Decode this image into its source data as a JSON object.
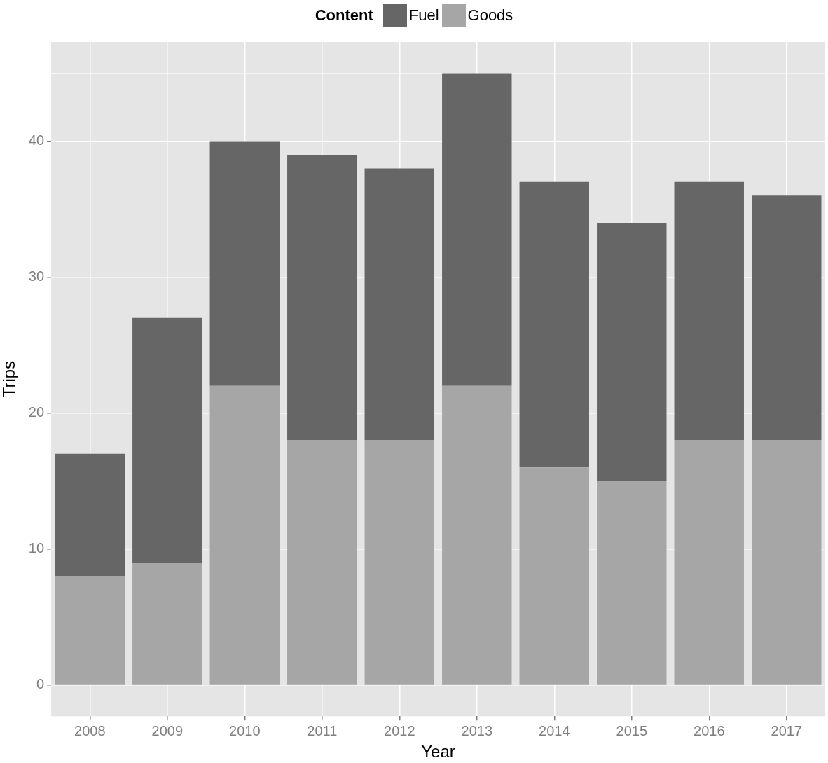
{
  "chart_data": {
    "type": "bar",
    "stacked": true,
    "xlabel": "Year",
    "ylabel": "Trips",
    "legend_title": "Content",
    "legend": "top",
    "categories": [
      "2008",
      "2009",
      "2010",
      "2011",
      "2012",
      "2013",
      "2014",
      "2015",
      "2016",
      "2017"
    ],
    "series": [
      {
        "name": "Goods",
        "color": "#a6a6a6",
        "values": [
          8,
          9,
          22,
          18,
          18,
          22,
          16,
          15,
          18,
          18
        ]
      },
      {
        "name": "Fuel",
        "color": "#666666",
        "values": [
          9,
          18,
          18,
          21,
          20,
          23,
          21,
          19,
          19,
          18
        ]
      }
    ],
    "ylim": [
      -2.3,
      47.3
    ],
    "yticks": [
      0,
      {
        "value": 5,
        "label": null
      },
      10,
      {
        "value": 15,
        "label": null
      },
      20,
      {
        "value": 25,
        "label": null
      },
      30,
      {
        "value": 35,
        "label": null
      },
      40,
      {
        "value": 45,
        "label": null
      }
    ],
    "grid": true
  }
}
